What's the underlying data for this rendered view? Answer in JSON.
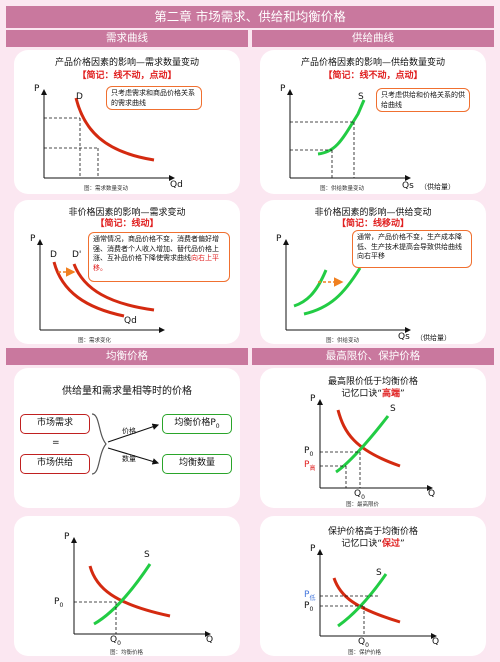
{
  "title": "第二章 市场需求、供给和均衡价格",
  "sections": {
    "demand": "需求曲线",
    "supply": "供给曲线",
    "equilibrium": "均衡价格",
    "limits": "最高限价、保护价格"
  },
  "demand_price": {
    "title": "产品价格因素的影响—需求数量变动",
    "mnemonic": "【简记：线不动，点动】",
    "callout": "只考虑需求和商品价格关系的需求曲线",
    "p": "P",
    "curve": "D",
    "q": "Qd",
    "caption": "图：需求数量变动"
  },
  "supply_price": {
    "title": "产品价格因素的影响—供给数量变动",
    "mnemonic": "【简记：线不动，点动】",
    "callout": "只考虑供给和价格关系的供给曲线",
    "p": "P",
    "curve": "S",
    "q": "Qs",
    "q_note": "（供给量）",
    "caption": "图：供给数量变动"
  },
  "demand_nonprice": {
    "title": "非价格因素的影响—需求变动",
    "mnemonic": "【简记：线动】",
    "callout_main": "通常情况，商品价格不变，消费者偏好增强、消费者个人收入增加、替代品价格上涨、互补品价格下降使需求曲线",
    "callout_em": "向右上平移。",
    "p": "P",
    "d1": "D",
    "d2": "D'",
    "q": "Qd",
    "caption": "图：需求变化"
  },
  "supply_nonprice": {
    "title": "非价格因素的影响—供给变动",
    "mnemonic": "【简记：线移动】",
    "callout": "通常，产品价格不变，生产成本降低、生产技术提高会导致供给曲线向右平移",
    "p": "P",
    "q": "Qs",
    "q_note": "（供给量）",
    "caption": "图：供给变动"
  },
  "equilibrium_def": {
    "heading": "供给量和需求量相等时的价格",
    "market_demand": "市场需求",
    "equals": "=",
    "market_supply": "市场供给",
    "price_label": "价格",
    "qty_label": "数量",
    "eq_price": "均衡价格P",
    "eq_price_sub": "0",
    "eq_qty": "均衡数量"
  },
  "ceiling": {
    "line1": "最高限价低于均衡价格",
    "line2": "记忆口诀“",
    "em": "高端",
    "close": "”",
    "p": "P",
    "s": "S",
    "q": "Q",
    "p0": "P",
    "p0_sub": "0",
    "pm": "P",
    "pm_sub": "高",
    "q0": "Q",
    "q0_sub": "0",
    "caption": "图：最高限价"
  },
  "eq_graph": {
    "p": "P",
    "s": "S",
    "q": "Q",
    "p0": "P",
    "p0_sub": "0",
    "q0": "Q",
    "q0_sub": "0",
    "caption": "图：均衡价格"
  },
  "floor": {
    "line1": "保护价格高于均衡价格",
    "line2": "记忆口诀“",
    "em": "保过",
    "close": "”",
    "p": "P",
    "s": "S",
    "q": "Q",
    "pf": "P",
    "pf_sub": "低",
    "p0": "P",
    "p0_sub": "0",
    "q0": "Q",
    "q0_sub": "0",
    "caption": "图：保护价格"
  },
  "colors": {
    "header": "#c9789e",
    "demand": "#d42a10",
    "supply": "#22cc44",
    "accent": "#e02020",
    "callout": "#f07030",
    "floor_label": "#4477dd"
  }
}
